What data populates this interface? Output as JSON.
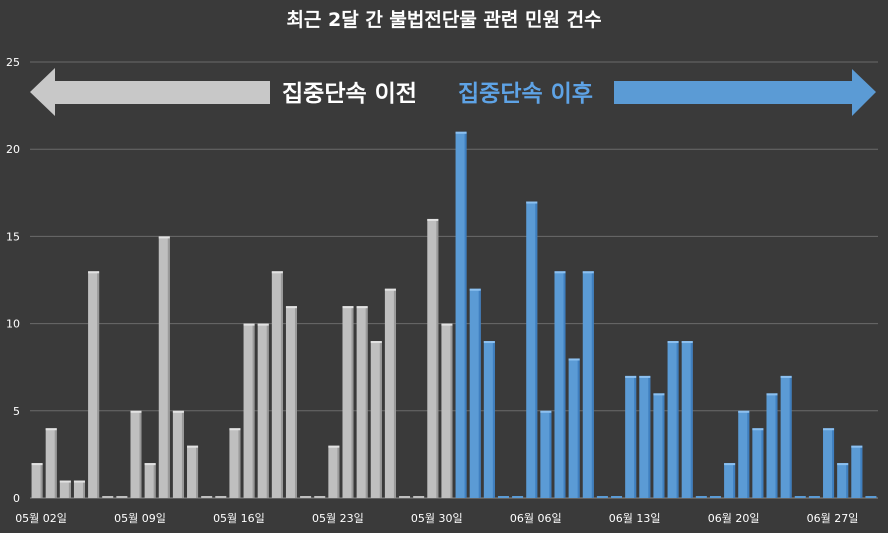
{
  "chart_data": {
    "type": "bar",
    "title": "최근 2달 간 불법전단물 관련 민원 건수",
    "xlabel": "",
    "ylabel": "",
    "ylim": [
      0,
      25
    ],
    "yticks": [
      0,
      5,
      10,
      15,
      20,
      25
    ],
    "grid": true,
    "annotations": {
      "before_label": "집중단속 이전",
      "after_label": "집중단속 이후"
    },
    "colors": {
      "before": "#bfbfbf",
      "after": "#5b9bd5",
      "background": "#3a3a3a",
      "grid": "#6a6a6a"
    },
    "tick_labels": [
      "05월 02일",
      "05월 09일",
      "05월 16일",
      "05월 23일",
      "05월 30일",
      "06월 06일",
      "06월 13일",
      "06월 20일",
      "06월 27일"
    ],
    "split_index": 30,
    "values": [
      2,
      4,
      1,
      1,
      13,
      0,
      0,
      5,
      2,
      15,
      5,
      3,
      0,
      0,
      4,
      10,
      10,
      13,
      11,
      0,
      0,
      3,
      11,
      11,
      9,
      12,
      0,
      0,
      16,
      10,
      21,
      12,
      9,
      0,
      0,
      17,
      5,
      13,
      8,
      13,
      0,
      0,
      7,
      7,
      6,
      9,
      9,
      0,
      0,
      2,
      5,
      4,
      6,
      7,
      0,
      0,
      4,
      2,
      3,
      0
    ]
  }
}
